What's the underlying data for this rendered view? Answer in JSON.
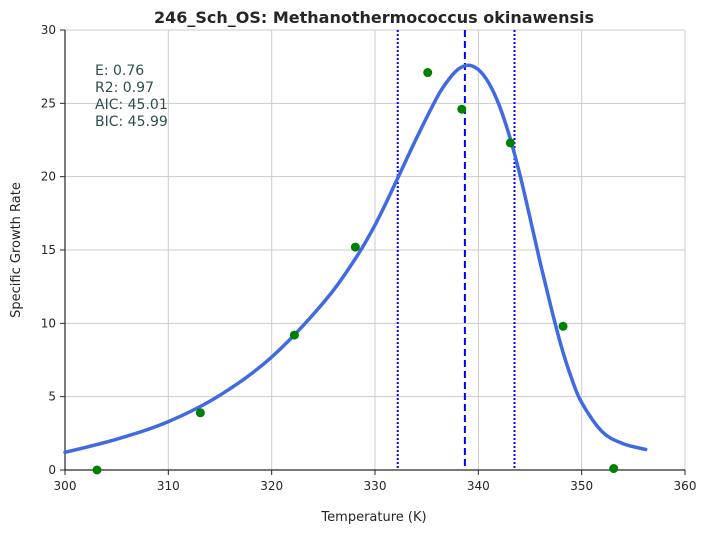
{
  "chart_data": {
    "type": "scatter",
    "title": "246_Sch_OS: Methanothermococcus okinawensis",
    "xlabel": "Temperature (K)",
    "ylabel": "Specific Growth Rate",
    "xlim": [
      300,
      360
    ],
    "ylim": [
      0,
      30
    ],
    "xticks": [
      "300",
      "310",
      "320",
      "330",
      "340",
      "350",
      "360"
    ],
    "yticks": [
      "0",
      "5",
      "10",
      "15",
      "20",
      "25",
      "30"
    ],
    "grid": true,
    "stats": [
      {
        "text": "E:  0.76"
      },
      {
        "text": "R2:  0.97"
      },
      {
        "text": "AIC: 45.01"
      },
      {
        "text": "BIC: 45.99"
      }
    ],
    "observed": {
      "color": "#008000",
      "x": [
        303.1,
        313.1,
        322.2,
        328.1,
        335.1,
        338.4,
        343.1,
        348.2,
        353.1
      ],
      "y": [
        0.0,
        3.9,
        9.2,
        15.2,
        27.1,
        24.6,
        22.3,
        9.8,
        0.1
      ]
    },
    "fit": {
      "color": "#4169e1",
      "x": [
        300,
        305,
        310,
        315,
        320,
        325,
        328,
        330,
        332,
        334,
        336,
        337,
        338,
        339,
        340,
        341,
        342,
        343,
        344,
        345,
        346,
        347,
        348,
        349,
        350,
        352,
        354,
        356.2
      ],
      "y": [
        1.2,
        2.1,
        3.3,
        5.1,
        7.7,
        11.4,
        14.3,
        16.7,
        19.6,
        22.6,
        25.4,
        26.5,
        27.3,
        27.6,
        27.3,
        26.4,
        24.9,
        22.8,
        20.2,
        17.2,
        14.1,
        11.2,
        8.5,
        6.3,
        4.6,
        2.6,
        1.8,
        1.4
      ]
    },
    "vlines": [
      {
        "x": 338.7,
        "style": "dashed",
        "color": "#0000ff"
      },
      {
        "x": 332.2,
        "style": "dotted",
        "color": "#0000ff"
      },
      {
        "x": 343.5,
        "style": "dotted",
        "color": "#0000ff"
      }
    ]
  }
}
